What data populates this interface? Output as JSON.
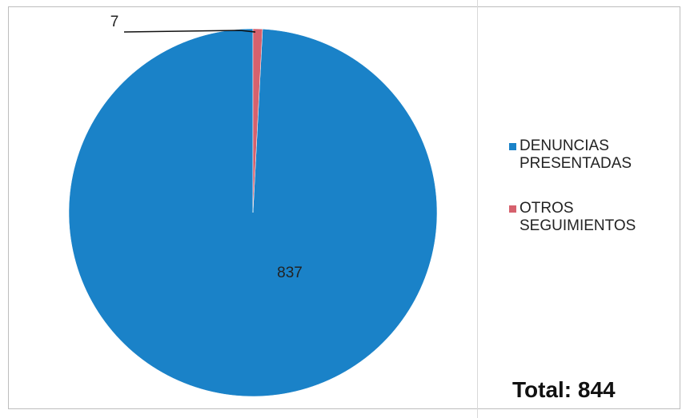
{
  "chart_data": {
    "type": "pie",
    "slices": [
      {
        "label": "DENUNCIAS PRESENTADAS",
        "value": 837,
        "color": "#1a82c8"
      },
      {
        "label": "OTROS SEGUIMIENTOS",
        "value": 7,
        "color": "#d6616d"
      }
    ],
    "data_labels": [
      "837",
      "7"
    ],
    "legend_position": "right"
  },
  "total_label": "Total: 844"
}
